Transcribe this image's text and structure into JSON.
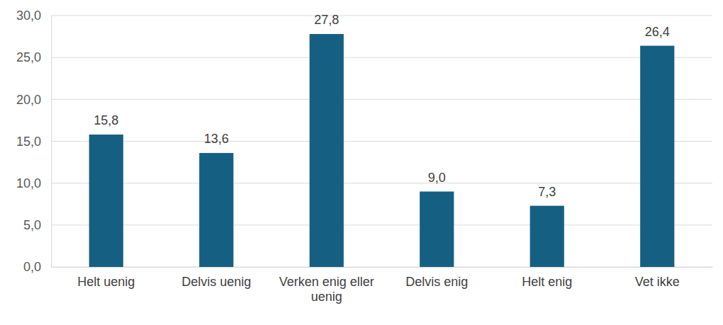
{
  "chart_data": {
    "type": "bar",
    "categories": [
      "Helt uenig",
      "Delvis uenig",
      "Verken enig eller uenig",
      "Delvis enig",
      "Helt enig",
      "Vet ikke"
    ],
    "values": [
      15.8,
      13.6,
      27.8,
      9.0,
      7.3,
      26.4
    ],
    "value_labels": [
      "15,8",
      "13,6",
      "27,8",
      "9,0",
      "7,3",
      "26,4"
    ],
    "color": "#156082",
    "ylim": [
      0,
      30
    ],
    "yticks": [
      {
        "value": 0,
        "label": "0,0"
      },
      {
        "value": 5,
        "label": "5,0"
      },
      {
        "value": 10,
        "label": "10,0"
      },
      {
        "value": 15,
        "label": "15,0"
      },
      {
        "value": 20,
        "label": "20,0"
      },
      {
        "value": 25,
        "label": "25,0"
      },
      {
        "value": 30,
        "label": "30,0"
      }
    ],
    "grid": true,
    "data_labels": true
  }
}
